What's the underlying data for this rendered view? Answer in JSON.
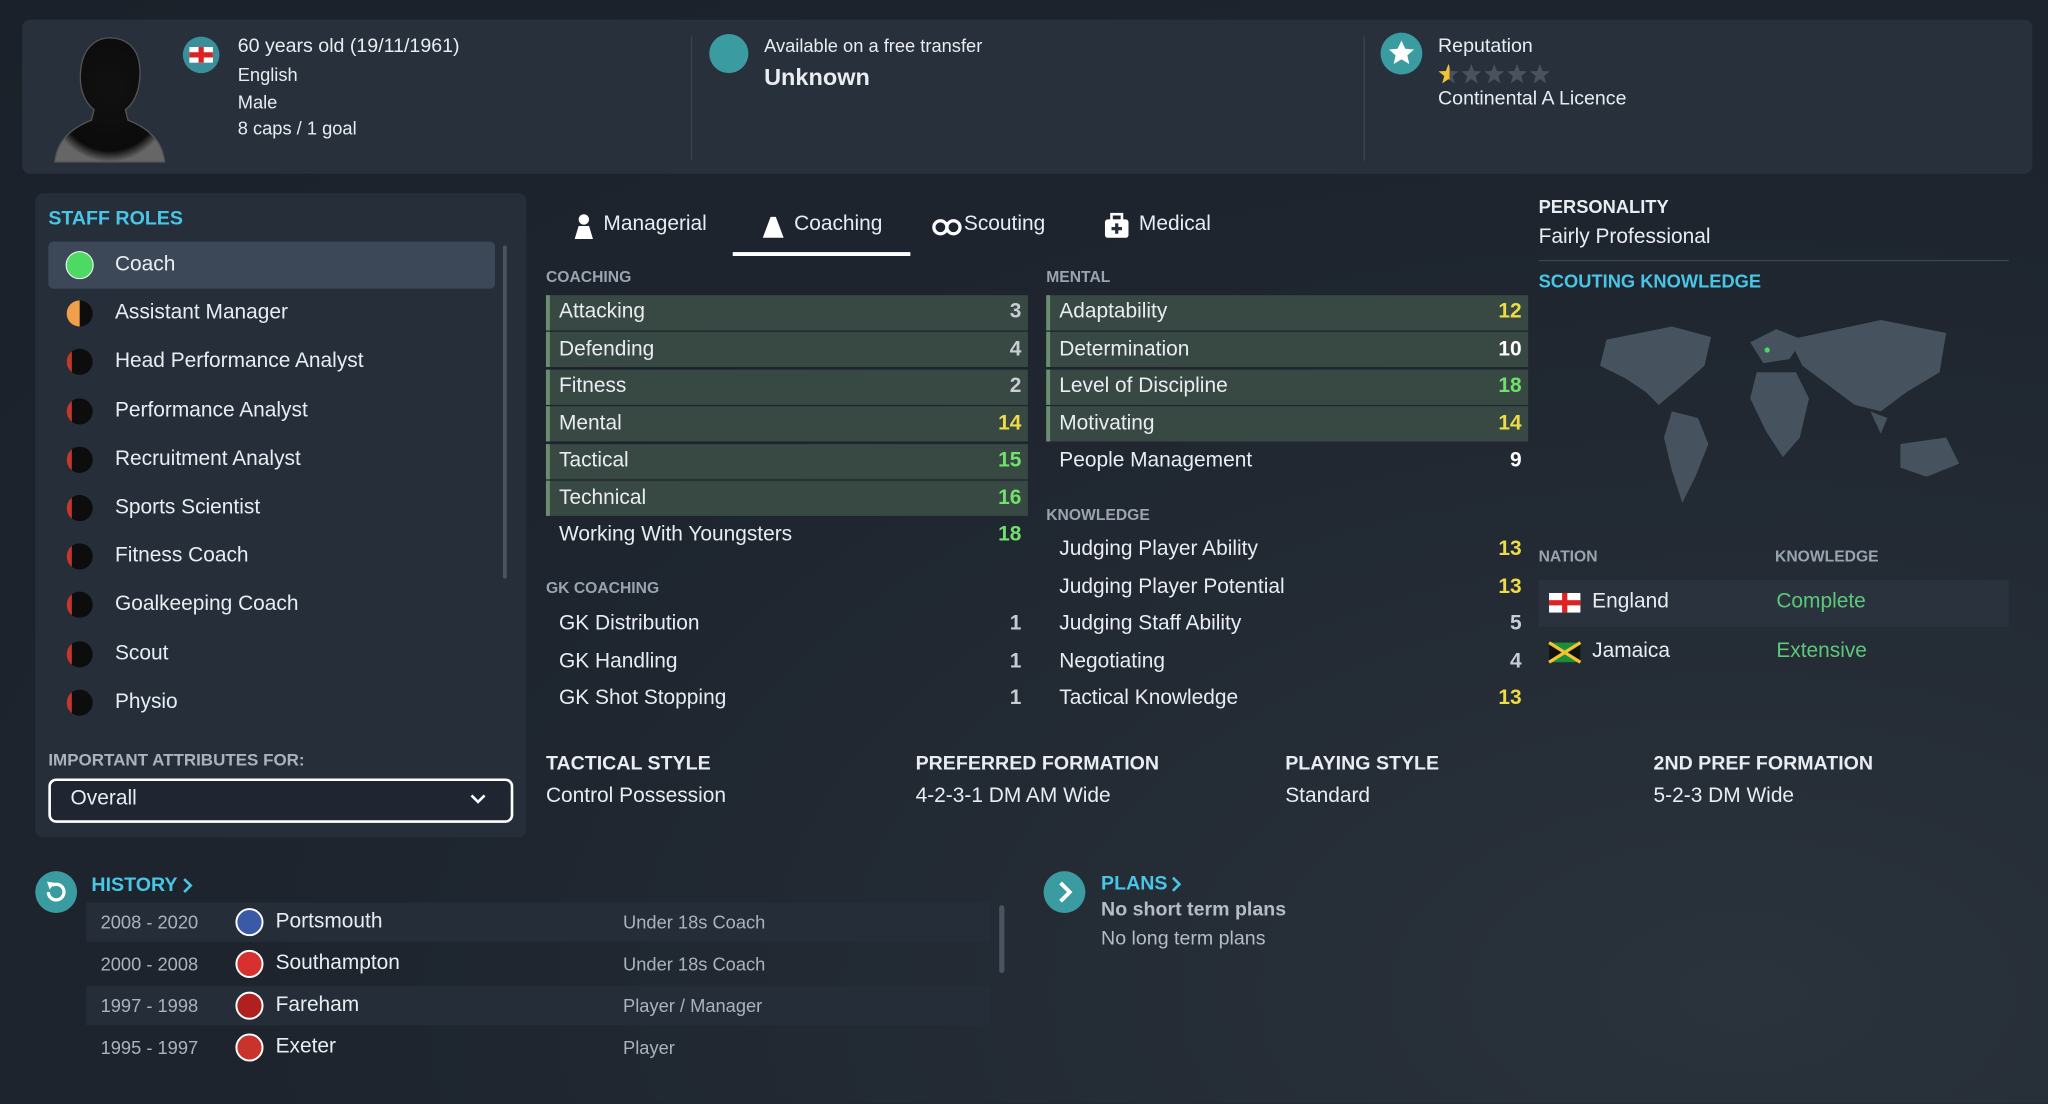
{
  "header": {
    "age": "60 years old (19/11/1961)",
    "nationality": "English",
    "gender": "Male",
    "caps": "8 caps / 1 goal",
    "contract_label": "Available on a free transfer",
    "contract_value": "Unknown",
    "reputation_label": "Reputation",
    "reputation_stars": 0.5,
    "licence": "Continental A Licence"
  },
  "staff_roles": {
    "title": "STAFF ROLES",
    "roles": [
      {
        "name": "Coach",
        "suitability": 1,
        "color": "#4cd964"
      },
      {
        "name": "Assistant Manager",
        "suitability": 0.5,
        "color": "#f0a04b"
      },
      {
        "name": "Head Performance Analyst",
        "suitability": 0.2,
        "color": "#c0392b"
      },
      {
        "name": "Performance Analyst",
        "suitability": 0.2,
        "color": "#c0392b"
      },
      {
        "name": "Recruitment Analyst",
        "suitability": 0.2,
        "color": "#c0392b"
      },
      {
        "name": "Sports Scientist",
        "suitability": 0.2,
        "color": "#c0392b"
      },
      {
        "name": "Fitness Coach",
        "suitability": 0.2,
        "color": "#c0392b"
      },
      {
        "name": "Goalkeeping Coach",
        "suitability": 0.2,
        "color": "#c0392b"
      },
      {
        "name": "Scout",
        "suitability": 0.2,
        "color": "#c0392b"
      },
      {
        "name": "Physio",
        "suitability": 0.2,
        "color": "#c0392b"
      }
    ],
    "selected": 0,
    "important_label": "IMPORTANT ATTRIBUTES FOR:",
    "important_value": "Overall"
  },
  "tabs": {
    "items": [
      "Managerial",
      "Coaching",
      "Scouting",
      "Medical"
    ],
    "active": 1
  },
  "attributes": {
    "coaching": {
      "title": "COACHING",
      "rows": [
        {
          "name": "Attacking",
          "value": 3,
          "key": true
        },
        {
          "name": "Defending",
          "value": 4,
          "key": true
        },
        {
          "name": "Fitness",
          "value": 2,
          "key": true
        },
        {
          "name": "Mental",
          "value": 14,
          "key": true
        },
        {
          "name": "Tactical",
          "value": 15,
          "key": true
        },
        {
          "name": "Technical",
          "value": 16,
          "key": true
        },
        {
          "name": "Working With Youngsters",
          "value": 18,
          "key": false
        }
      ]
    },
    "gk_coaching": {
      "title": "GK COACHING",
      "rows": [
        {
          "name": "GK Distribution",
          "value": 1,
          "key": false
        },
        {
          "name": "GK Handling",
          "value": 1,
          "key": false
        },
        {
          "name": "GK Shot Stopping",
          "value": 1,
          "key": false
        }
      ]
    },
    "mental": {
      "title": "MENTAL",
      "rows": [
        {
          "name": "Adaptability",
          "value": 12,
          "key": true
        },
        {
          "name": "Determination",
          "value": 10,
          "key": true
        },
        {
          "name": "Level of Discipline",
          "value": 18,
          "key": true
        },
        {
          "name": "Motivating",
          "value": 14,
          "key": true
        },
        {
          "name": "People Management",
          "value": 9,
          "key": false
        }
      ]
    },
    "knowledge": {
      "title": "KNOWLEDGE",
      "rows": [
        {
          "name": "Judging Player Ability",
          "value": 13,
          "key": false
        },
        {
          "name": "Judging Player Potential",
          "value": 13,
          "key": false
        },
        {
          "name": "Judging Staff Ability",
          "value": 5,
          "key": false
        },
        {
          "name": "Negotiating",
          "value": 4,
          "key": false
        },
        {
          "name": "Tactical Knowledge",
          "value": 13,
          "key": false
        }
      ]
    }
  },
  "styles": [
    {
      "label": "TACTICAL STYLE",
      "value": "Control Possession"
    },
    {
      "label": "PREFERRED FORMATION",
      "value": "4-2-3-1 DM AM Wide"
    },
    {
      "label": "PLAYING STYLE",
      "value": "Standard"
    },
    {
      "label": "2ND PREF FORMATION",
      "value": "5-2-3 DM Wide"
    }
  ],
  "personality": {
    "title": "PERSONALITY",
    "value": "Fairly Professional"
  },
  "scouting_knowledge": {
    "title": "SCOUTING KNOWLEDGE",
    "columns": [
      "NATION",
      "KNOWLEDGE"
    ],
    "rows": [
      {
        "nation": "England",
        "level": "Complete"
      },
      {
        "nation": "Jamaica",
        "level": "Extensive"
      }
    ]
  },
  "history": {
    "title": "HISTORY",
    "rows": [
      {
        "years": "2008 - 2020",
        "club": "Portsmouth",
        "role": "Under 18s Coach",
        "badge_color": "#3a5aa8"
      },
      {
        "years": "2000 - 2008",
        "club": "Southampton",
        "role": "Under 18s Coach",
        "badge_color": "#d8302f"
      },
      {
        "years": "1997 - 1998",
        "club": "Fareham",
        "role": "Player / Manager",
        "badge_color": "#b02020"
      },
      {
        "years": "1995 - 1997",
        "club": "Exeter",
        "role": "Player",
        "badge_color": "#c8342c"
      }
    ]
  },
  "plans": {
    "title": "PLANS",
    "short_term": "No short term plans",
    "long_term": "No long term plans"
  }
}
